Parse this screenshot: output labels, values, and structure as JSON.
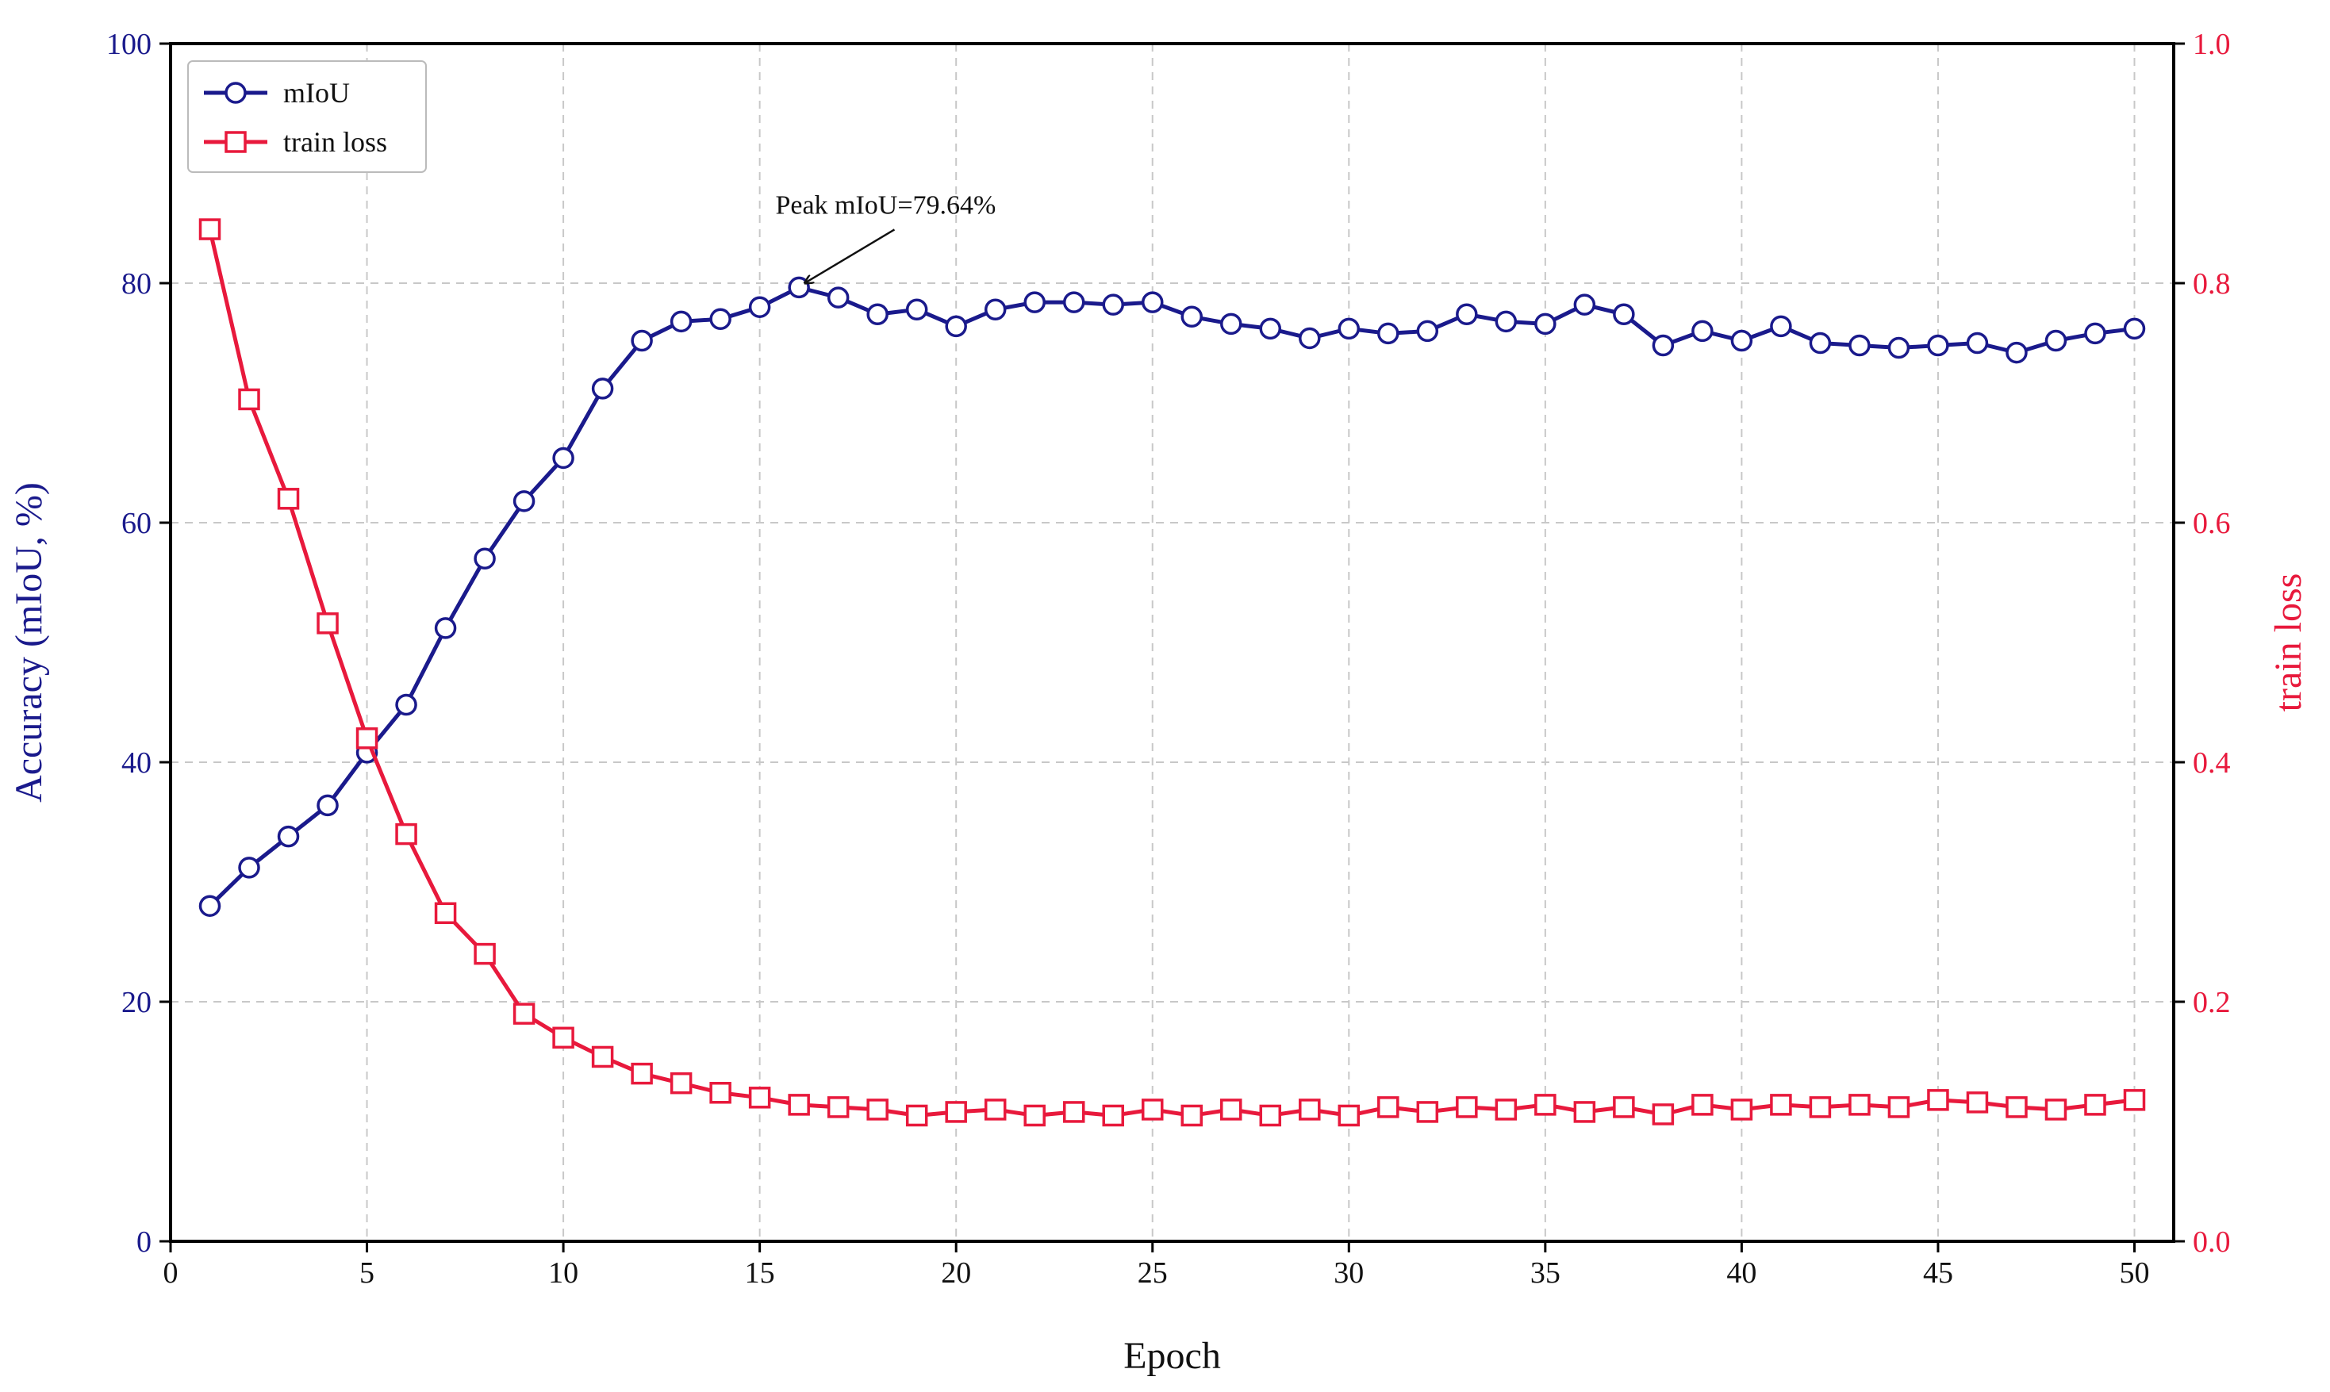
{
  "chart_data": {
    "type": "line",
    "x": [
      1,
      2,
      3,
      4,
      5,
      6,
      7,
      8,
      9,
      10,
      11,
      12,
      13,
      14,
      15,
      16,
      17,
      18,
      19,
      20,
      21,
      22,
      23,
      24,
      25,
      26,
      27,
      28,
      29,
      30,
      31,
      32,
      33,
      34,
      35,
      36,
      37,
      38,
      39,
      40,
      41,
      42,
      43,
      44,
      45,
      46,
      47,
      48,
      49,
      50
    ],
    "xlabel": "Epoch",
    "ylabel": "Accuracy (mIoU, %)",
    "y2label": "train loss",
    "xlim": [
      0,
      51
    ],
    "ylim": [
      0,
      100
    ],
    "y2lim": [
      0.0,
      1.0
    ],
    "xticks": [
      "0",
      "5",
      "10",
      "15",
      "20",
      "25",
      "30",
      "35",
      "40",
      "45",
      "50"
    ],
    "yticks": [
      "0",
      "20",
      "40",
      "60",
      "80",
      "100"
    ],
    "y2ticks": [
      "0.0",
      "0.2",
      "0.4",
      "0.6",
      "0.8",
      "1.0"
    ],
    "grid": true,
    "legend": "top-left",
    "series": [
      {
        "name": "mIoU",
        "axis": "left",
        "color": "#1a1a8c",
        "marker": "circle",
        "values": [
          28.0,
          31.2,
          33.8,
          36.4,
          40.8,
          44.8,
          51.2,
          57.0,
          61.8,
          65.4,
          71.2,
          75.2,
          76.8,
          77.0,
          78.0,
          79.64,
          78.8,
          77.4,
          77.8,
          76.4,
          77.8,
          78.4,
          78.4,
          78.2,
          78.4,
          77.2,
          76.6,
          76.2,
          75.4,
          76.2,
          75.8,
          76.0,
          77.4,
          76.8,
          76.6,
          78.2,
          77.4,
          74.8,
          76.0,
          75.2,
          76.4,
          75.0,
          74.8,
          74.6,
          74.8,
          75.0,
          74.2,
          75.2,
          75.8,
          76.2
        ]
      },
      {
        "name": "train loss",
        "axis": "right",
        "color": "#e8193c",
        "marker": "square",
        "values": [
          0.845,
          0.703,
          0.62,
          0.516,
          0.42,
          0.34,
          0.274,
          0.24,
          0.19,
          0.17,
          0.154,
          0.14,
          0.132,
          0.124,
          0.12,
          0.114,
          0.112,
          0.11,
          0.105,
          0.108,
          0.11,
          0.105,
          0.108,
          0.105,
          0.11,
          0.105,
          0.11,
          0.105,
          0.11,
          0.105,
          0.112,
          0.108,
          0.112,
          0.11,
          0.114,
          0.108,
          0.112,
          0.106,
          0.114,
          0.11,
          0.114,
          0.112,
          0.114,
          0.112,
          0.118,
          0.116,
          0.112,
          0.11,
          0.114,
          0.118
        ]
      }
    ],
    "annotations": [
      {
        "text": "Peak mIoU=79.64%",
        "x": 16,
        "y": 79.64,
        "text_x": 15.4,
        "text_y": 85.8
      }
    ]
  }
}
